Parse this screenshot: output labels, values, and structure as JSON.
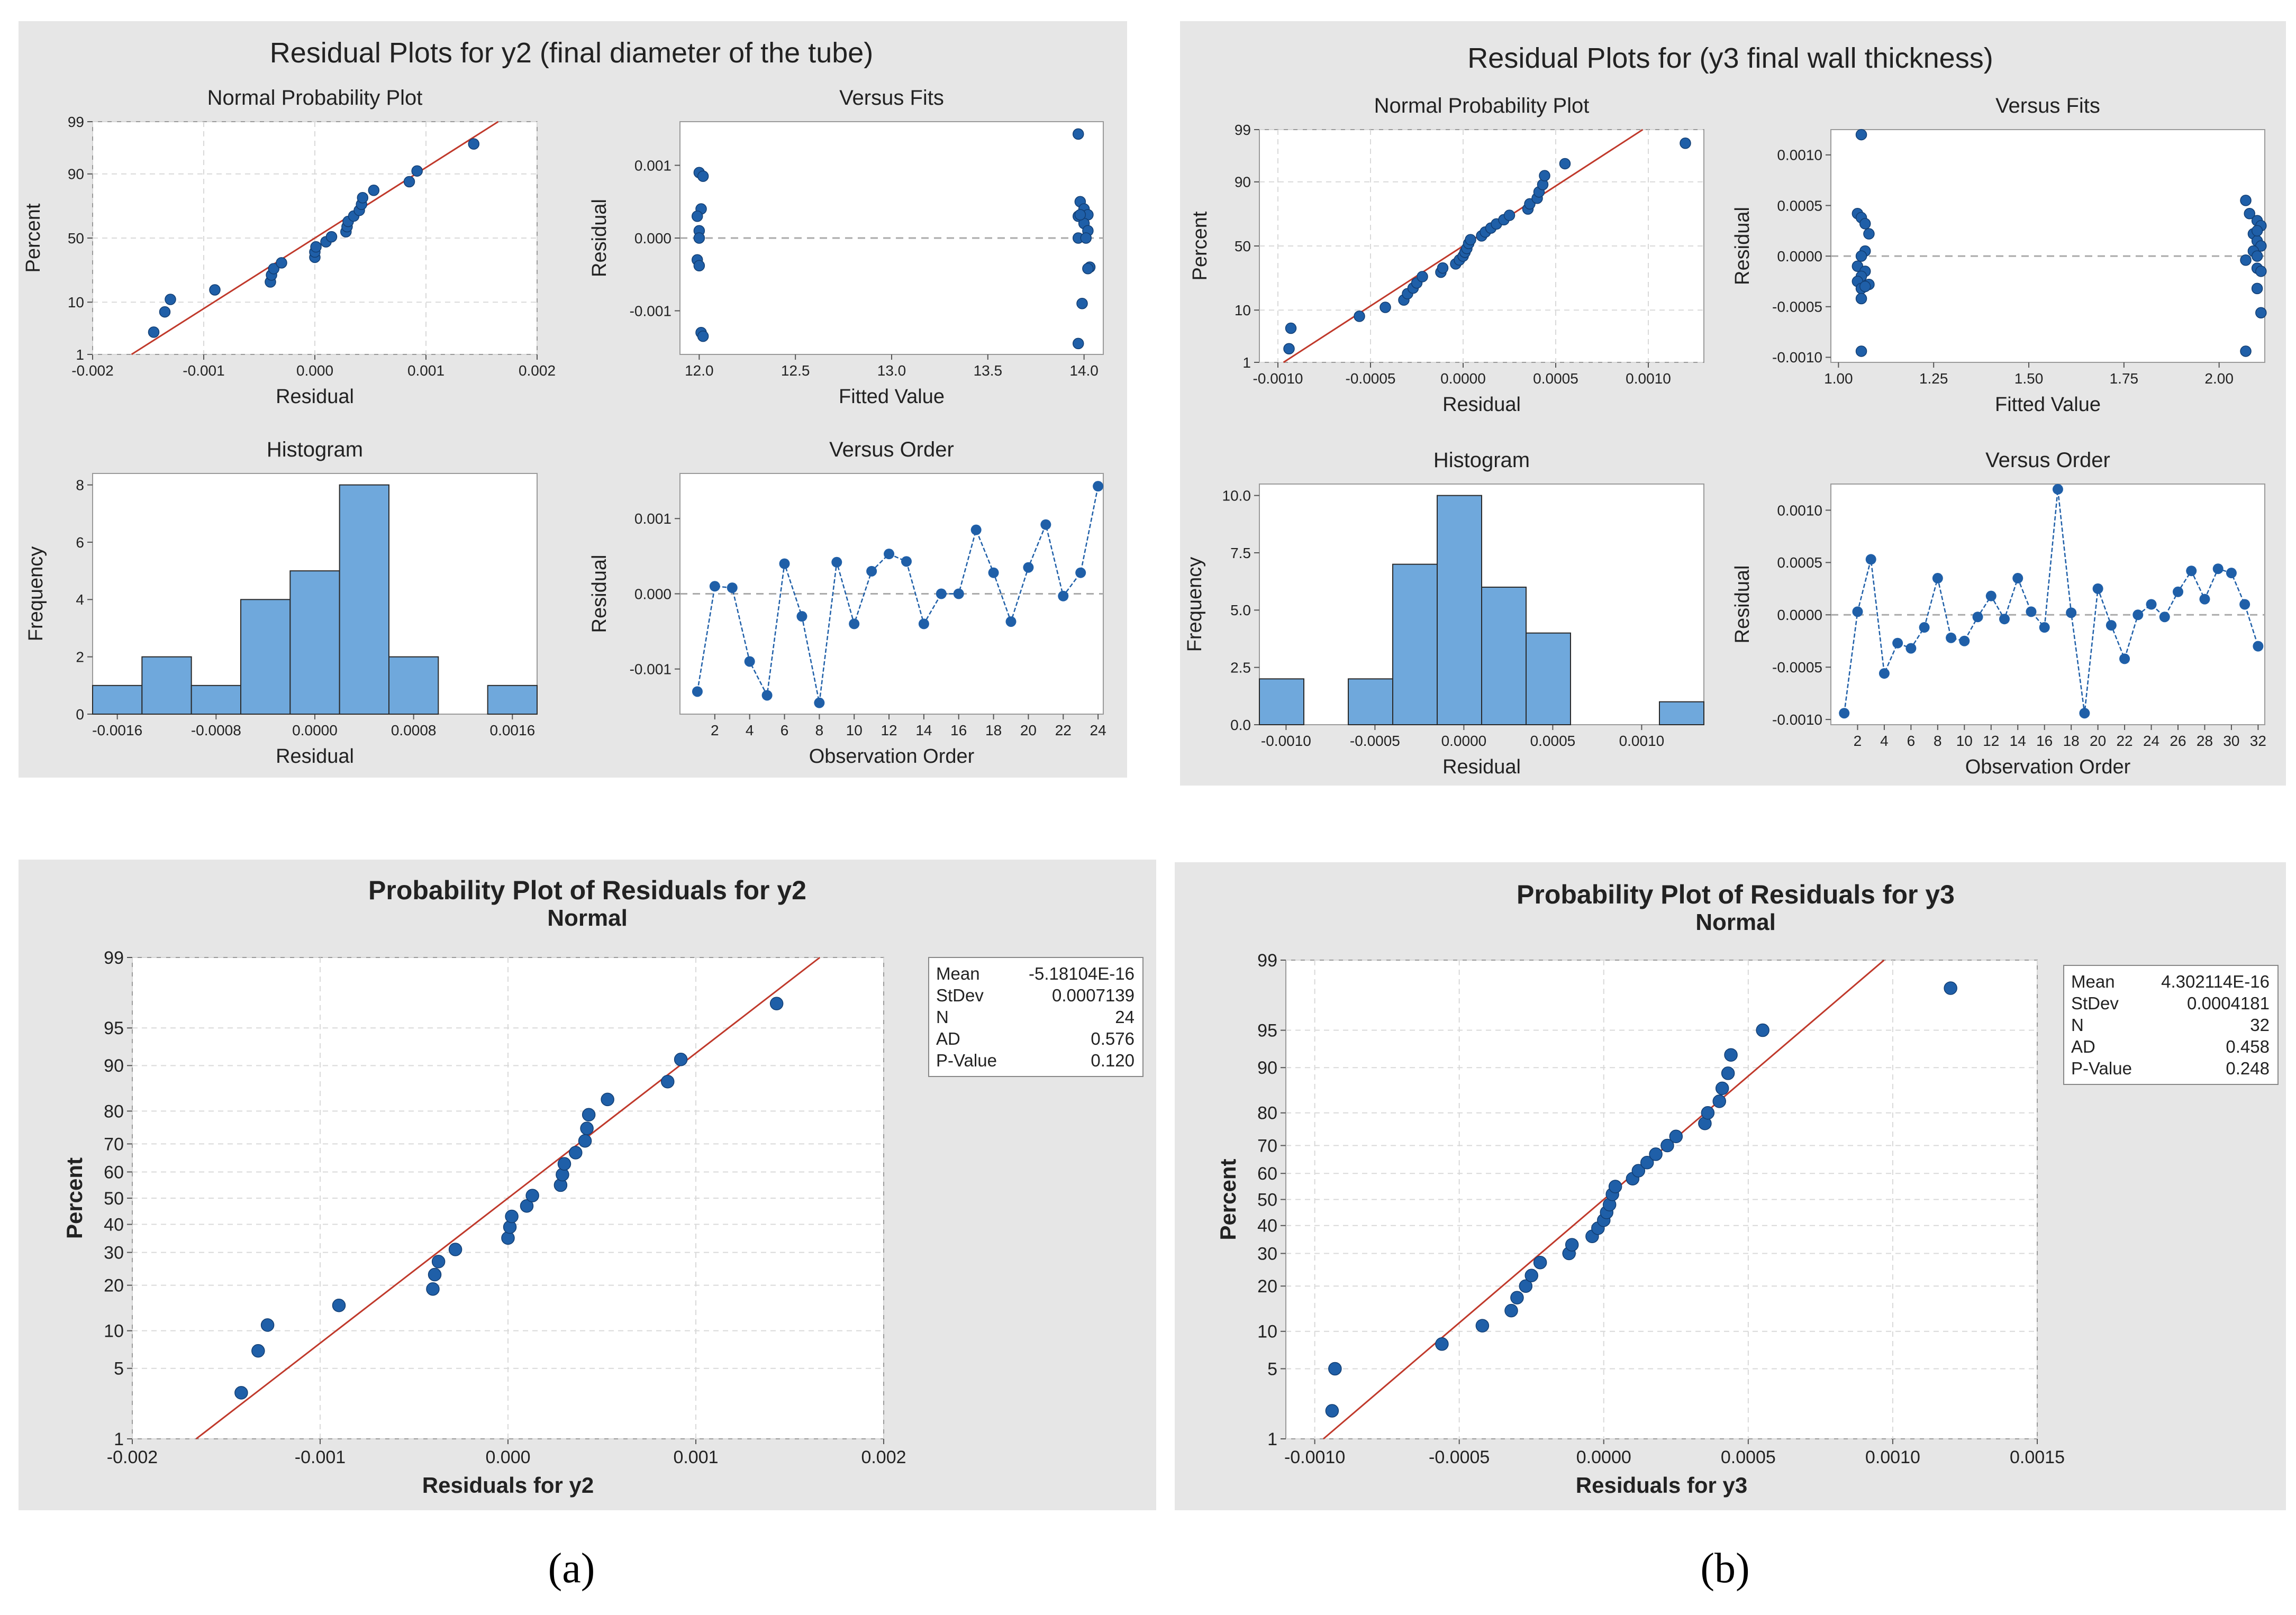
{
  "panels": {
    "a": {
      "caption": "(a)",
      "residual_title": "Residual Plots for y2 (final diameter of the tube)",
      "probability_title": "Probability Plot of Residuals for y2",
      "probability_subtitle": "Normal",
      "stats": [
        {
          "label": "Mean",
          "value": "-5.18104E-16"
        },
        {
          "label": "StDev",
          "value": "0.0007139"
        },
        {
          "label": "N",
          "value": "24"
        },
        {
          "label": "AD",
          "value": "0.576"
        },
        {
          "label": "P-Value",
          "value": "0.120"
        }
      ]
    },
    "b": {
      "caption": "(b)",
      "residual_title": "Residual Plots for (y3 final wall thickness)",
      "probability_title": "Probability Plot of Residuals for y3",
      "probability_subtitle": "Normal",
      "stats": [
        {
          "label": "Mean",
          "value": "4.302114E-16"
        },
        {
          "label": "StDev",
          "value": "0.0004181"
        },
        {
          "label": "N",
          "value": "32"
        },
        {
          "label": "AD",
          "value": "0.458"
        },
        {
          "label": "P-Value",
          "value": "0.248"
        }
      ]
    }
  },
  "colors": {
    "panel_bg": "#e6e6e6",
    "plot_bg": "#ffffff",
    "point": "#1f5fa8",
    "bar_fill": "#6fa8dc",
    "fit_line": "#c0392b",
    "grid": "#d9d9d9"
  },
  "chart_data": [
    {
      "id": "a_npp",
      "type": "scatter",
      "title": "Normal Probability Plot",
      "xlabel": "Residual",
      "ylabel": "Percent",
      "xlim": [
        -0.002,
        0.002
      ],
      "ylim_percent": [
        1,
        99
      ],
      "x_ticks": [
        "-0.002",
        "-0.001",
        "0.000",
        "0.001",
        "0.002"
      ],
      "y_ticks": [
        "1",
        "10",
        "50",
        "90",
        "99"
      ],
      "fit_line": {
        "from": [
          -0.00165,
          1
        ],
        "to": [
          0.00165,
          99
        ]
      },
      "points": [
        [
          -0.00145,
          3
        ],
        [
          -0.00135,
          7
        ],
        [
          -0.0013,
          11
        ],
        [
          -0.0009,
          15
        ],
        [
          -0.0004,
          19
        ],
        [
          -0.00039,
          23
        ],
        [
          -0.00037,
          27
        ],
        [
          -0.0003,
          31
        ],
        [
          0,
          35
        ],
        [
          0,
          39
        ],
        [
          1e-05,
          43
        ],
        [
          0.0001,
          47
        ],
        [
          0.00015,
          51
        ],
        [
          0.00028,
          55
        ],
        [
          0.00029,
          59
        ],
        [
          0.0003,
          63
        ],
        [
          0.00035,
          67
        ],
        [
          0.0004,
          71
        ],
        [
          0.00042,
          75
        ],
        [
          0.00043,
          79
        ],
        [
          0.00053,
          83
        ],
        [
          0.00085,
          87
        ],
        [
          0.00092,
          91
        ],
        [
          0.00143,
          97
        ]
      ]
    },
    {
      "id": "a_fits",
      "type": "scatter",
      "title": "Versus Fits",
      "xlabel": "Fitted Value",
      "ylabel": "Residual",
      "xlim": [
        11.9,
        14.1
      ],
      "ylim": [
        -0.0016,
        0.0016
      ],
      "x_ticks": [
        "12.0",
        "12.5",
        "13.0",
        "13.5",
        "14.0"
      ],
      "y_ticks": [
        "-0.001",
        "0.000",
        "0.001"
      ],
      "points": [
        [
          12.0,
          0.0009
        ],
        [
          12.02,
          0.00085
        ],
        [
          12.01,
          0.0004
        ],
        [
          11.99,
          0.0003
        ],
        [
          12.0,
          0.0001
        ],
        [
          12.0,
          0.0
        ],
        [
          11.99,
          -0.0003
        ],
        [
          12.0,
          -0.00038
        ],
        [
          12.01,
          -0.0013
        ],
        [
          12.02,
          -0.00135
        ],
        [
          13.97,
          0.00143
        ],
        [
          13.98,
          0.0005
        ],
        [
          14.0,
          0.0004
        ],
        [
          13.97,
          0.0003
        ],
        [
          14.02,
          0.00032
        ],
        [
          14.0,
          0.0002
        ],
        [
          14.02,
          0.0001
        ],
        [
          13.97,
          0.0
        ],
        [
          14.01,
          0.0
        ],
        [
          14.03,
          -0.0004
        ],
        [
          14.02,
          -0.00042
        ],
        [
          13.99,
          -0.0009
        ],
        [
          13.97,
          -0.00145
        ],
        [
          13.98,
          0.00032
        ]
      ]
    },
    {
      "id": "a_hist",
      "type": "bar",
      "title": "Histogram",
      "xlabel": "Residual",
      "ylabel": "Frequency",
      "xlim": [
        -0.0018,
        0.0018
      ],
      "ylim": [
        0,
        8.4
      ],
      "x_ticks": [
        "-0.0016",
        "-0.0008",
        "0.0000",
        "0.0008",
        "0.0016"
      ],
      "y_ticks": [
        "0",
        "2",
        "4",
        "6",
        "8"
      ],
      "bins": [
        {
          "start": -0.0018,
          "end": -0.0014,
          "count": 1
        },
        {
          "start": -0.0014,
          "end": -0.001,
          "count": 2
        },
        {
          "start": -0.001,
          "end": -0.0006,
          "count": 1
        },
        {
          "start": -0.0006,
          "end": -0.0002,
          "count": 4
        },
        {
          "start": -0.0002,
          "end": 0.0002,
          "count": 5
        },
        {
          "start": 0.0002,
          "end": 0.0006,
          "count": 8
        },
        {
          "start": 0.0006,
          "end": 0.001,
          "count": 2
        },
        {
          "start": 0.001,
          "end": 0.0014,
          "count": 0
        },
        {
          "start": 0.0014,
          "end": 0.0018,
          "count": 1
        }
      ]
    },
    {
      "id": "a_order",
      "type": "line",
      "title": "Versus Order",
      "xlabel": "Observation Order",
      "ylabel": "Residual",
      "xlim": [
        0,
        24.3
      ],
      "ylim": [
        -0.0016,
        0.0016
      ],
      "x_ticks": [
        "2",
        "4",
        "6",
        "8",
        "10",
        "12",
        "14",
        "16",
        "18",
        "20",
        "22",
        "24"
      ],
      "y_ticks": [
        "-0.001",
        "0.000",
        "0.001"
      ],
      "x": [
        1,
        2,
        3,
        4,
        5,
        6,
        7,
        8,
        9,
        10,
        11,
        12,
        13,
        14,
        15,
        16,
        17,
        18,
        19,
        20,
        21,
        22,
        23,
        24
      ],
      "values": [
        -0.0013,
        0.0001,
        8e-05,
        -0.0009,
        -0.00135,
        0.0004,
        -0.0003,
        -0.00145,
        0.00042,
        -0.0004,
        0.0003,
        0.00053,
        0.00043,
        -0.0004,
        0.0,
        0.0,
        0.00085,
        0.00028,
        -0.00037,
        0.00035,
        0.00092,
        -3e-05,
        0.00028,
        0.00143
      ]
    },
    {
      "id": "b_npp",
      "type": "scatter",
      "title": "Normal Probability Plot",
      "xlabel": "Residual",
      "ylabel": "Percent",
      "xlim": [
        -0.0011,
        0.0013
      ],
      "ylim_percent": [
        1,
        99
      ],
      "x_ticks": [
        "-0.0010",
        "-0.0005",
        "0.0000",
        "0.0005",
        "0.0010"
      ],
      "y_ticks": [
        "1",
        "10",
        "50",
        "90",
        "99"
      ],
      "fit_line": {
        "from": [
          -0.00097,
          1
        ],
        "to": [
          0.00097,
          99
        ]
      },
      "points": [
        [
          -0.00094,
          2
        ],
        [
          -0.00093,
          5
        ],
        [
          -0.00056,
          8
        ],
        [
          -0.00042,
          11
        ],
        [
          -0.00032,
          14
        ],
        [
          -0.0003,
          17
        ],
        [
          -0.00027,
          20
        ],
        [
          -0.00025,
          23
        ],
        [
          -0.00022,
          27
        ],
        [
          -0.00012,
          30
        ],
        [
          -0.00011,
          33
        ],
        [
          -4e-05,
          36
        ],
        [
          -2e-05,
          39
        ],
        [
          0.0,
          42
        ],
        [
          1e-05,
          45
        ],
        [
          2e-05,
          48
        ],
        [
          3e-05,
          52
        ],
        [
          4e-05,
          55
        ],
        [
          0.0001,
          58
        ],
        [
          0.00012,
          61
        ],
        [
          0.00015,
          64
        ],
        [
          0.00018,
          67
        ],
        [
          0.00022,
          70
        ],
        [
          0.00025,
          73
        ],
        [
          0.00035,
          77
        ],
        [
          0.00036,
          80
        ],
        [
          0.0004,
          83
        ],
        [
          0.00041,
          86
        ],
        [
          0.00043,
          89
        ],
        [
          0.00044,
          92
        ],
        [
          0.00055,
          95
        ],
        [
          0.0012,
          98
        ]
      ]
    },
    {
      "id": "b_fits",
      "type": "scatter",
      "title": "Versus Fits",
      "xlabel": "Fitted Value",
      "ylabel": "Residual",
      "xlim": [
        0.98,
        2.12
      ],
      "ylim": [
        -0.00105,
        0.00125
      ],
      "x_ticks": [
        "1.00",
        "1.25",
        "1.50",
        "1.75",
        "2.00"
      ],
      "y_ticks": [
        "-0.0010",
        "-0.0005",
        "0.0000",
        "0.0005",
        "0.0010"
      ],
      "points": [
        [
          1.06,
          0.0012
        ],
        [
          1.05,
          0.00042
        ],
        [
          1.06,
          0.00038
        ],
        [
          1.07,
          0.00032
        ],
        [
          1.08,
          0.00022
        ],
        [
          1.07,
          5e-05
        ],
        [
          1.06,
          0.0
        ],
        [
          1.05,
          -0.0001
        ],
        [
          1.07,
          -0.00015
        ],
        [
          1.06,
          -0.0002
        ],
        [
          1.05,
          -0.00025
        ],
        [
          1.08,
          -0.00028
        ],
        [
          1.06,
          -0.00032
        ],
        [
          1.06,
          -0.00042
        ],
        [
          1.06,
          -0.00094
        ],
        [
          1.07,
          -0.0003
        ],
        [
          2.07,
          0.00055
        ],
        [
          2.08,
          0.00042
        ],
        [
          2.1,
          0.00035
        ],
        [
          2.11,
          0.0003
        ],
        [
          2.09,
          0.00022
        ],
        [
          2.1,
          0.00015
        ],
        [
          2.11,
          0.0001
        ],
        [
          2.09,
          5e-05
        ],
        [
          2.1,
          0.0
        ],
        [
          2.07,
          -4e-05
        ],
        [
          2.1,
          -0.00012
        ],
        [
          2.11,
          -0.00015
        ],
        [
          2.1,
          -0.00032
        ],
        [
          2.11,
          -0.00056
        ],
        [
          2.07,
          -0.00094
        ],
        [
          2.1,
          0.00025
        ]
      ]
    },
    {
      "id": "b_hist",
      "type": "bar",
      "title": "Histogram",
      "xlabel": "Residual",
      "ylabel": "Frequency",
      "xlim": [
        -0.00115,
        0.00135
      ],
      "ylim": [
        0,
        10.5
      ],
      "x_ticks": [
        "-0.0010",
        "-0.0005",
        "0.0000",
        "0.0005",
        "0.0010"
      ],
      "y_ticks": [
        "0.0",
        "2.5",
        "5.0",
        "7.5",
        "10.0"
      ],
      "bins": [
        {
          "start": -0.00115,
          "end": -0.0009,
          "count": 2
        },
        {
          "start": -0.0009,
          "end": -0.00065,
          "count": 0
        },
        {
          "start": -0.00065,
          "end": -0.0004,
          "count": 2
        },
        {
          "start": -0.0004,
          "end": -0.00015,
          "count": 7
        },
        {
          "start": -0.00015,
          "end": 0.0001,
          "count": 10
        },
        {
          "start": 0.0001,
          "end": 0.00035,
          "count": 6
        },
        {
          "start": 0.00035,
          "end": 0.0006,
          "count": 4
        },
        {
          "start": 0.0006,
          "end": 0.00085,
          "count": 0
        },
        {
          "start": 0.00085,
          "end": 0.0011,
          "count": 0
        },
        {
          "start": 0.0011,
          "end": 0.00135,
          "count": 1
        }
      ]
    },
    {
      "id": "b_order",
      "type": "line",
      "title": "Versus Order",
      "xlabel": "Observation Order",
      "ylabel": "Residual",
      "xlim": [
        0,
        32.5
      ],
      "ylim": [
        -0.00105,
        0.00125
      ],
      "x_ticks": [
        "2",
        "4",
        "6",
        "8",
        "10",
        "12",
        "14",
        "16",
        "18",
        "20",
        "22",
        "24",
        "26",
        "28",
        "30",
        "32"
      ],
      "y_ticks": [
        "-0.0010",
        "-0.0005",
        "0.0000",
        "0.0005",
        "0.0010"
      ],
      "x": [
        1,
        2,
        3,
        4,
        5,
        6,
        7,
        8,
        9,
        10,
        11,
        12,
        13,
        14,
        15,
        16,
        17,
        18,
        19,
        20,
        21,
        22,
        23,
        24,
        25,
        26,
        27,
        28,
        29,
        30,
        31,
        32
      ],
      "values": [
        -0.00094,
        3e-05,
        0.00053,
        -0.00056,
        -0.00027,
        -0.00032,
        -0.00012,
        0.00035,
        -0.00022,
        -0.00025,
        -2e-05,
        0.00018,
        -4e-05,
        0.00035,
        3e-05,
        -0.00012,
        0.0012,
        2e-05,
        -0.00094,
        0.00025,
        -0.0001,
        -0.00042,
        0.0,
        0.0001,
        -2e-05,
        0.00022,
        0.00042,
        0.00015,
        0.00044,
        0.0004,
        0.0001,
        -0.0003
      ]
    },
    {
      "id": "a_prob",
      "type": "scatter",
      "title": "Probability Plot of Residuals for y2",
      "subtitle": "Normal",
      "xlabel": "Residuals for y2",
      "ylabel": "Percent",
      "xlim": [
        -0.002,
        0.002
      ],
      "ylim_percent": [
        1,
        99
      ],
      "x_ticks": [
        "-0.002",
        "-0.001",
        "0.000",
        "0.001",
        "0.002"
      ],
      "y_ticks": [
        "1",
        "5",
        "10",
        "20",
        "30",
        "40",
        "50",
        "60",
        "70",
        "80",
        "90",
        "95",
        "99"
      ],
      "fit_line": {
        "from": [
          -0.00166,
          1
        ],
        "to": [
          0.00166,
          99
        ]
      },
      "points": [
        [
          -0.00142,
          3
        ],
        [
          -0.00133,
          7
        ],
        [
          -0.00128,
          11
        ],
        [
          -0.0009,
          15
        ],
        [
          -0.0004,
          19
        ],
        [
          -0.00039,
          23
        ],
        [
          -0.00037,
          27
        ],
        [
          -0.00028,
          31
        ],
        [
          0.0,
          35
        ],
        [
          1e-05,
          39
        ],
        [
          2e-05,
          43
        ],
        [
          0.0001,
          47
        ],
        [
          0.00013,
          51
        ],
        [
          0.00028,
          55
        ],
        [
          0.00029,
          59
        ],
        [
          0.0003,
          63
        ],
        [
          0.00036,
          67
        ],
        [
          0.00041,
          71
        ],
        [
          0.00042,
          75
        ],
        [
          0.00043,
          79
        ],
        [
          0.00053,
          83
        ],
        [
          0.00085,
          87
        ],
        [
          0.00092,
          91
        ],
        [
          0.00143,
          97
        ]
      ]
    },
    {
      "id": "b_prob",
      "type": "scatter",
      "title": "Probability Plot of Residuals for y3",
      "subtitle": "Normal",
      "xlabel": "Residuals for y3",
      "ylabel": "Percent",
      "xlim": [
        -0.0011,
        0.0015
      ],
      "ylim_percent": [
        1,
        99
      ],
      "x_ticks": [
        "-0.0010",
        "-0.0005",
        "0.0000",
        "0.0005",
        "0.0010",
        "0.0015"
      ],
      "y_ticks": [
        "1",
        "5",
        "10",
        "20",
        "30",
        "40",
        "50",
        "60",
        "70",
        "80",
        "90",
        "95",
        "99"
      ],
      "fit_line": {
        "from": [
          -0.00097,
          1
        ],
        "to": [
          0.00097,
          99
        ]
      },
      "points": [
        [
          -0.00094,
          2
        ],
        [
          -0.00093,
          5
        ],
        [
          -0.00056,
          8
        ],
        [
          -0.00042,
          11
        ],
        [
          -0.00032,
          14
        ],
        [
          -0.0003,
          17
        ],
        [
          -0.00027,
          20
        ],
        [
          -0.00025,
          23
        ],
        [
          -0.00022,
          27
        ],
        [
          -0.00012,
          30
        ],
        [
          -0.00011,
          33
        ],
        [
          -4e-05,
          36
        ],
        [
          -2e-05,
          39
        ],
        [
          0.0,
          42
        ],
        [
          1e-05,
          45
        ],
        [
          2e-05,
          48
        ],
        [
          3e-05,
          52
        ],
        [
          4e-05,
          55
        ],
        [
          0.0001,
          58
        ],
        [
          0.00012,
          61
        ],
        [
          0.00015,
          64
        ],
        [
          0.00018,
          67
        ],
        [
          0.00022,
          70
        ],
        [
          0.00025,
          73
        ],
        [
          0.00035,
          77
        ],
        [
          0.00036,
          80
        ],
        [
          0.0004,
          83
        ],
        [
          0.00041,
          86
        ],
        [
          0.00043,
          89
        ],
        [
          0.00044,
          92
        ],
        [
          0.00055,
          95
        ],
        [
          0.0012,
          98
        ]
      ]
    }
  ]
}
